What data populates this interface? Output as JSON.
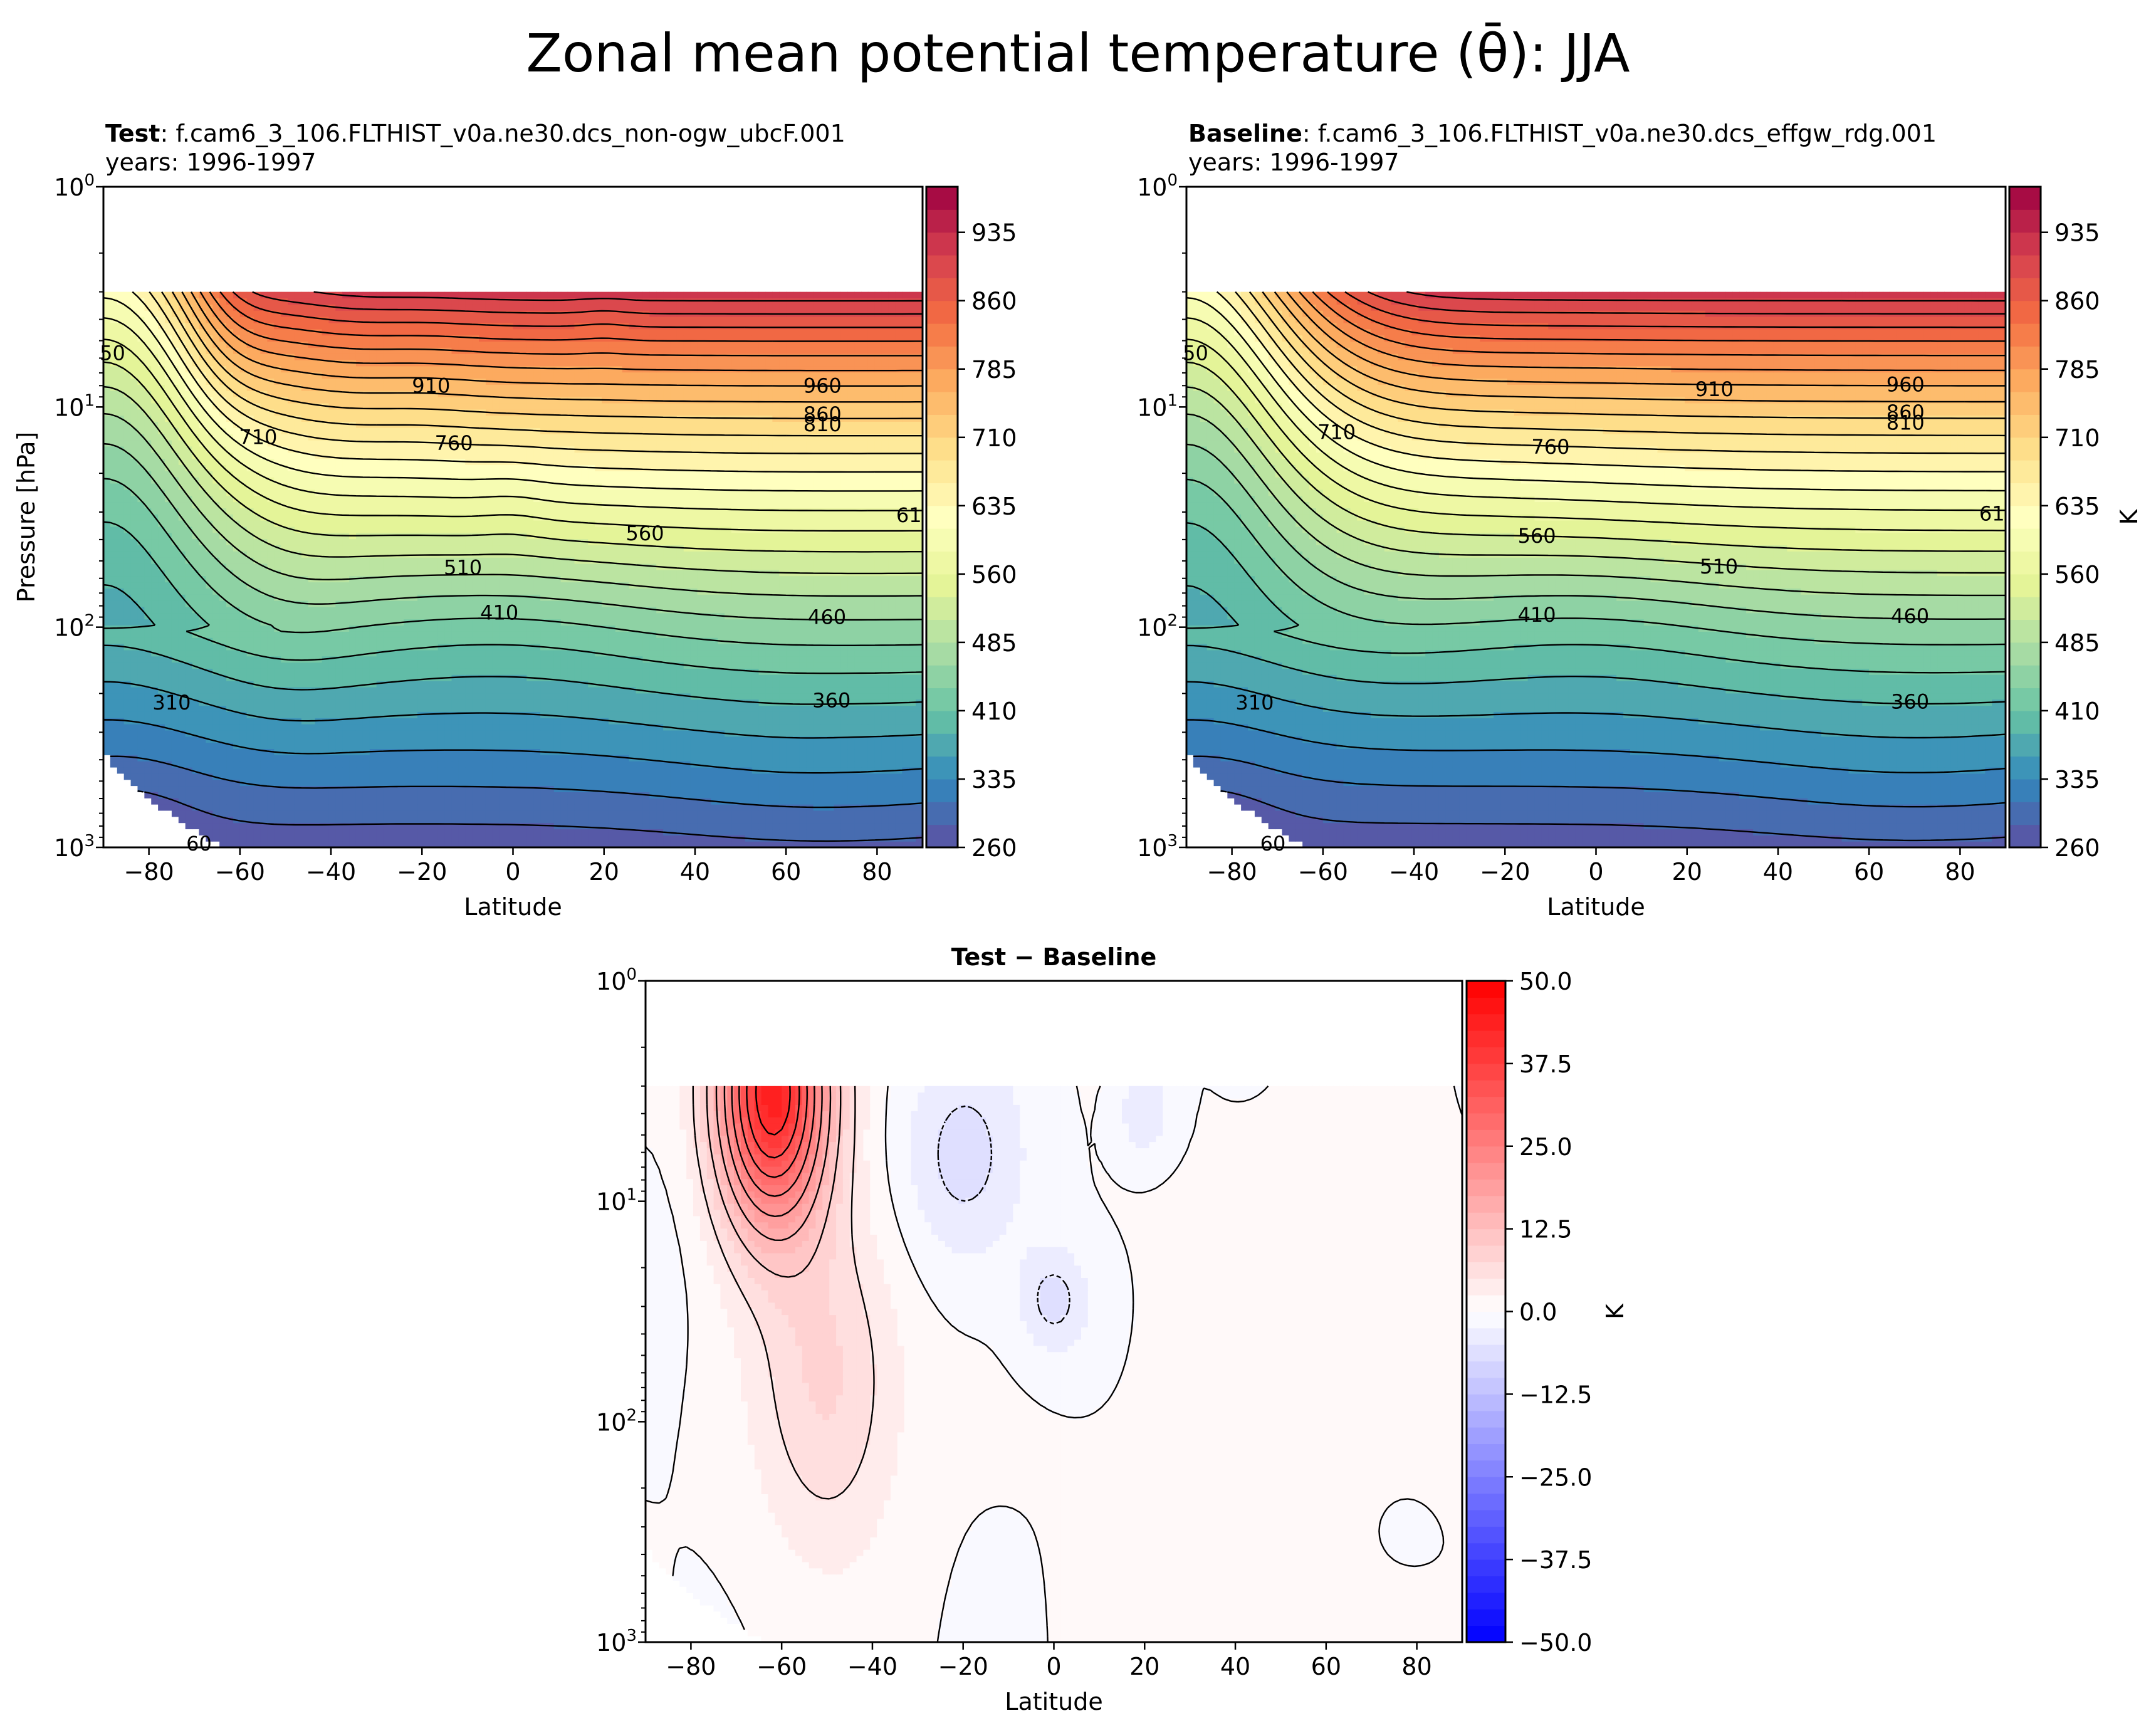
{
  "figure": {
    "suptitle": "Zonal mean potential temperature (θ̄): JJA"
  },
  "chart_data": [
    {
      "id": "test",
      "type": "heatmap",
      "subtype": "filled-contour",
      "title_bold": "Test",
      "title_rest": ": f.cam6_3_106.FLTHIST_v0a.ne30.dcs_non-ogw_ubcF.001",
      "subtitle": "years: 1996-1997",
      "xlabel": "Latitude",
      "ylabel": "Pressure [hPa]",
      "xlim": [
        -90,
        90
      ],
      "ylim": [
        1000,
        1
      ],
      "yscale": "log",
      "model_top_hPa": 3,
      "xticks": [
        -80,
        -60,
        -40,
        -20,
        0,
        20,
        40,
        60,
        80
      ],
      "xtick_labels": [
        "−80",
        "−60",
        "−40",
        "−20",
        "0",
        "20",
        "40",
        "60",
        "80"
      ],
      "yticks": [
        1000,
        100,
        10,
        1
      ],
      "ytick_labels": [
        {
          "base": "10",
          "exp": "3"
        },
        {
          "base": "10",
          "exp": "2"
        },
        {
          "base": "10",
          "exp": "1"
        },
        {
          "base": "10",
          "exp": "0"
        }
      ],
      "colormap": "Spectral_r",
      "levels": {
        "min": 260,
        "max": 985,
        "step": 25
      },
      "colorbar_ticks": [
        260,
        335,
        410,
        485,
        560,
        635,
        710,
        785,
        860,
        935
      ],
      "colorbar_label": "",
      "contour_labels": [
        {
          "value": 660,
          "text": "50",
          "lat": -88,
          "p": 5.7
        },
        {
          "value": 710,
          "text": "710",
          "lat": -56,
          "p": 13.7
        },
        {
          "value": 910,
          "text": "910",
          "lat": -18,
          "p": 8.0
        },
        {
          "value": 760,
          "text": "760",
          "lat": -13,
          "p": 14.6
        },
        {
          "value": 960,
          "text": "960",
          "lat": 68,
          "p": 8.0
        },
        {
          "value": 860,
          "text": "860",
          "lat": 68,
          "p": 10.8
        },
        {
          "value": 810,
          "text": "810",
          "lat": 68,
          "p": 12.0
        },
        {
          "value": 560,
          "text": "560",
          "lat": 29,
          "p": 37.5
        },
        {
          "value": 610,
          "text": "61",
          "lat": 87,
          "p": 31.0
        },
        {
          "value": 510,
          "text": "510",
          "lat": -11,
          "p": 53.6
        },
        {
          "value": 410,
          "text": "410",
          "lat": -3,
          "p": 86.0
        },
        {
          "value": 460,
          "text": "460",
          "lat": 69,
          "p": 90.0
        },
        {
          "value": 310,
          "text": "310",
          "lat": -75,
          "p": 220.0
        },
        {
          "value": 360,
          "text": "360",
          "lat": 70,
          "p": 215.0
        },
        {
          "value": 260,
          "text": "60",
          "lat": -69,
          "p": 960.0
        }
      ]
    },
    {
      "id": "baseline",
      "type": "heatmap",
      "subtype": "filled-contour",
      "title_bold": "Baseline",
      "title_rest": ": f.cam6_3_106.FLTHIST_v0a.ne30.dcs_effgw_rdg.001",
      "subtitle": "years: 1996-1997",
      "xlabel": "Latitude",
      "ylabel": "",
      "xlim": [
        -90,
        90
      ],
      "ylim": [
        1000,
        1
      ],
      "yscale": "log",
      "model_top_hPa": 3,
      "xticks": [
        -80,
        -60,
        -40,
        -20,
        0,
        20,
        40,
        60,
        80
      ],
      "xtick_labels": [
        "−80",
        "−60",
        "−40",
        "−20",
        "0",
        "20",
        "40",
        "60",
        "80"
      ],
      "yticks": [
        1000,
        100,
        10,
        1
      ],
      "ytick_labels": [
        {
          "base": "10",
          "exp": "3"
        },
        {
          "base": "10",
          "exp": "2"
        },
        {
          "base": "10",
          "exp": "1"
        },
        {
          "base": "10",
          "exp": "0"
        }
      ],
      "colormap": "Spectral_r",
      "levels": {
        "min": 260,
        "max": 985,
        "step": 25
      },
      "colorbar_ticks": [
        260,
        335,
        410,
        485,
        560,
        635,
        710,
        785,
        860,
        935
      ],
      "colorbar_label": "K",
      "contour_labels": [
        {
          "value": 660,
          "text": "50",
          "lat": -88,
          "p": 5.7
        },
        {
          "value": 710,
          "text": "710",
          "lat": -57,
          "p": 13.0
        },
        {
          "value": 910,
          "text": "910",
          "lat": 26,
          "p": 8.3
        },
        {
          "value": 760,
          "text": "760",
          "lat": -10,
          "p": 15.2
        },
        {
          "value": 960,
          "text": "960",
          "lat": 68,
          "p": 7.9
        },
        {
          "value": 860,
          "text": "860",
          "lat": 68,
          "p": 10.6
        },
        {
          "value": 810,
          "text": "810",
          "lat": 68,
          "p": 11.8
        },
        {
          "value": 560,
          "text": "560",
          "lat": -13,
          "p": 38.5
        },
        {
          "value": 610,
          "text": "61",
          "lat": 87,
          "p": 30.5
        },
        {
          "value": 510,
          "text": "510",
          "lat": 27,
          "p": 53.0
        },
        {
          "value": 410,
          "text": "410",
          "lat": -13,
          "p": 88.0
        },
        {
          "value": 460,
          "text": "460",
          "lat": 69,
          "p": 89.0
        },
        {
          "value": 310,
          "text": "310",
          "lat": -75,
          "p": 220.0
        },
        {
          "value": 360,
          "text": "360",
          "lat": 69,
          "p": 218.0
        },
        {
          "value": 260,
          "text": "60",
          "lat": -71,
          "p": 960.0
        }
      ]
    },
    {
      "id": "difference",
      "type": "heatmap",
      "subtype": "filled-contour",
      "title": "Test − Baseline",
      "xlabel": "Latitude",
      "ylabel": "",
      "xlim": [
        -90,
        90
      ],
      "ylim": [
        1000,
        1
      ],
      "yscale": "log",
      "model_top_hPa": 3,
      "xticks": [
        -80,
        -60,
        -40,
        -20,
        0,
        20,
        40,
        60,
        80
      ],
      "xtick_labels": [
        "−80",
        "−60",
        "−40",
        "−20",
        "0",
        "20",
        "40",
        "60",
        "80"
      ],
      "yticks": [
        1000,
        100,
        10,
        1
      ],
      "ytick_labels": [
        {
          "base": "10",
          "exp": "3"
        },
        {
          "base": "10",
          "exp": "2"
        },
        {
          "base": "10",
          "exp": "1"
        },
        {
          "base": "10",
          "exp": "0"
        }
      ],
      "colormap": "bwr",
      "levels": {
        "min": -50,
        "max": 50,
        "step": 2.5
      },
      "contour_interval": 5,
      "colorbar_ticks": [
        -50,
        -37.5,
        -25,
        -12.5,
        0,
        12.5,
        25,
        37.5,
        50
      ],
      "colorbar_tick_labels": [
        "−50.0",
        "−37.5",
        "−25.0",
        "−12.5",
        "0.0",
        "12.5",
        "25.0",
        "37.5",
        "50.0"
      ],
      "colorbar_label": "K",
      "max_difference_approx": 42,
      "max_difference_location": {
        "lat": -64,
        "p": 3.2
      }
    }
  ]
}
